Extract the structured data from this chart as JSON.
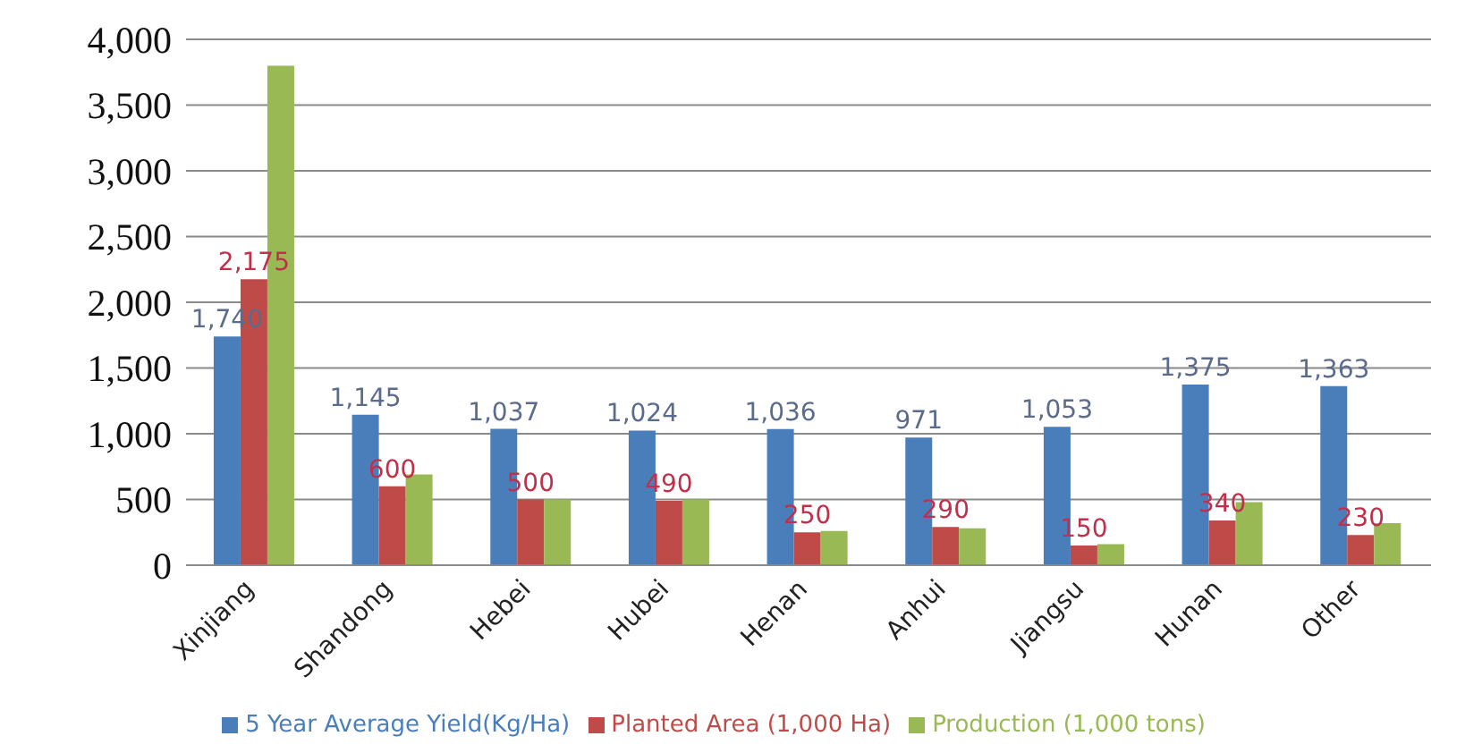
{
  "chart_data": {
    "type": "bar",
    "categories": [
      "Xinjiang",
      "Shandong",
      "Hebei",
      "Hubei",
      "Henan",
      "Anhui",
      "Jiangsu",
      "Hunan",
      "Other"
    ],
    "series": [
      {
        "name": "5 Year Average Yield(Kg/Ha)",
        "color": "#4a7ebb",
        "values": [
          1740,
          1145,
          1037,
          1024,
          1036,
          971,
          1053,
          1375,
          1363
        ],
        "value_labels": [
          "1,740",
          "1,145",
          "1,037",
          "1,024",
          "1,036",
          "971",
          "1,053",
          "1,375",
          "1,363"
        ]
      },
      {
        "name": "Planted Area (1,000 Ha)",
        "color": "#be4b48",
        "values": [
          2175,
          600,
          500,
          490,
          250,
          290,
          150,
          340,
          230
        ],
        "value_labels": [
          "2,175",
          "600",
          "500",
          "490",
          "250",
          "290",
          "150",
          "340",
          "230"
        ]
      },
      {
        "name": "Production (1,000 tons)",
        "color": "#98b954",
        "values": [
          3800,
          690,
          500,
          500,
          260,
          280,
          160,
          480,
          320
        ]
      }
    ],
    "ylim": [
      0,
      4000
    ],
    "yticks": [
      {
        "value": 0,
        "label": "0"
      },
      {
        "value": 500,
        "label": "500"
      },
      {
        "value": 1000,
        "label": "1,000"
      },
      {
        "value": 1500,
        "label": "1,500"
      },
      {
        "value": 2000,
        "label": "2,000"
      },
      {
        "value": 2500,
        "label": "2,500"
      },
      {
        "value": 3000,
        "label": "3,000"
      },
      {
        "value": 3500,
        "label": "3,500"
      },
      {
        "value": 4000,
        "label": "4,000"
      }
    ],
    "grid": "y",
    "legend": "bottom"
  }
}
